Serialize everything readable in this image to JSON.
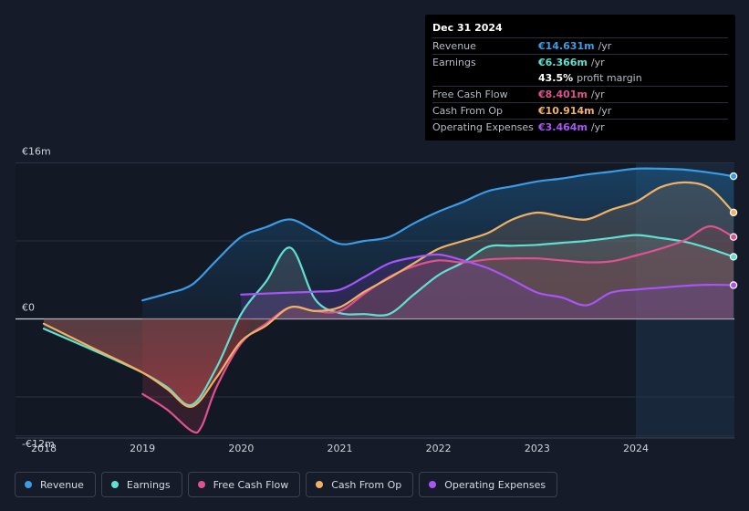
{
  "tooltip": {
    "date": "Dec 31 2024",
    "rows": [
      {
        "label": "Revenue",
        "value": "€14.631m",
        "unit": "/yr",
        "color": "#3b9ce6"
      },
      {
        "label": "Earnings",
        "value": "€6.366m",
        "unit": "/yr",
        "color": "#5fe0d0"
      },
      {
        "label": "",
        "value": "43.5%",
        "unit": "profit margin",
        "color": "#ffffff"
      },
      {
        "label": "Free Cash Flow",
        "value": "€8.401m",
        "unit": "/yr",
        "color": "#e0528f"
      },
      {
        "label": "Cash From Op",
        "value": "€10.914m",
        "unit": "/yr",
        "color": "#f1b164"
      },
      {
        "label": "Operating Expenses",
        "value": "€3.464m",
        "unit": "/yr",
        "color": "#a855f7"
      }
    ]
  },
  "legend": [
    {
      "label": "Revenue",
      "color": "#3b9ce6"
    },
    {
      "label": "Earnings",
      "color": "#5fe0d0"
    },
    {
      "label": "Free Cash Flow",
      "color": "#e0528f"
    },
    {
      "label": "Cash From Op",
      "color": "#f1b164"
    },
    {
      "label": "Operating Expenses",
      "color": "#a855f7"
    }
  ],
  "chart_data": {
    "type": "area",
    "y_unit": "€m",
    "y_axis_labels": [
      {
        "label": "€16m",
        "value": 16
      },
      {
        "label": "€0",
        "value": 0
      },
      {
        "label": "-€12m",
        "value": -12
      }
    ],
    "ylim": [
      -12,
      16
    ],
    "xlim": [
      2017.7,
      2024.99
    ],
    "x_ticks": [
      {
        "label": "2018",
        "value": 2018
      },
      {
        "label": "2019",
        "value": 2019
      },
      {
        "label": "2020",
        "value": 2020
      },
      {
        "label": "2021",
        "value": 2021
      },
      {
        "label": "2022",
        "value": 2022
      },
      {
        "label": "2023",
        "value": 2023
      },
      {
        "label": "2024",
        "value": 2024
      }
    ],
    "highlight_from": 2024.0,
    "series": [
      {
        "name": "Revenue",
        "color": "#3b9ce6",
        "x": [
          2019.0,
          2019.25,
          2019.5,
          2019.75,
          2020.0,
          2020.25,
          2020.5,
          2020.75,
          2021.0,
          2021.25,
          2021.5,
          2021.75,
          2022.0,
          2022.25,
          2022.5,
          2022.75,
          2023.0,
          2023.25,
          2023.5,
          2023.75,
          2024.0,
          2024.25,
          2024.5,
          2024.75,
          2024.99
        ],
        "y": [
          1.9,
          2.6,
          3.5,
          6.0,
          8.4,
          9.4,
          10.2,
          9.0,
          7.7,
          8.0,
          8.4,
          9.8,
          11.0,
          12.0,
          13.1,
          13.6,
          14.1,
          14.4,
          14.8,
          15.1,
          15.4,
          15.4,
          15.3,
          15.0,
          14.631
        ]
      },
      {
        "name": "Earnings",
        "color": "#5fe0d0",
        "x": [
          2018.0,
          2018.5,
          2019.0,
          2019.25,
          2019.5,
          2019.75,
          2020.0,
          2020.25,
          2020.5,
          2020.75,
          2021.0,
          2021.25,
          2021.5,
          2021.75,
          2022.0,
          2022.25,
          2022.5,
          2022.75,
          2023.0,
          2023.25,
          2023.5,
          2023.75,
          2024.0,
          2024.25,
          2024.5,
          2024.75,
          2024.99
        ],
        "y": [
          -1.0,
          -3.2,
          -5.5,
          -7.0,
          -8.8,
          -5.0,
          0.5,
          3.8,
          7.3,
          2.0,
          0.6,
          0.5,
          0.5,
          2.5,
          4.5,
          5.8,
          7.4,
          7.5,
          7.6,
          7.8,
          8.0,
          8.3,
          8.6,
          8.3,
          7.9,
          7.2,
          6.366
        ]
      },
      {
        "name": "Free Cash Flow",
        "color": "#e0528f",
        "x": [
          2019.0,
          2019.25,
          2019.5,
          2019.6,
          2019.75,
          2020.0,
          2020.25,
          2020.5,
          2020.75,
          2021.0,
          2021.25,
          2021.5,
          2021.75,
          2022.0,
          2022.25,
          2022.5,
          2022.75,
          2023.0,
          2023.25,
          2023.5,
          2023.75,
          2024.0,
          2024.25,
          2024.5,
          2024.75,
          2024.99
        ],
        "y": [
          -7.7,
          -9.3,
          -11.5,
          -11.0,
          -7.0,
          -2.5,
          -0.5,
          1.2,
          0.8,
          0.8,
          2.6,
          4.3,
          5.4,
          6.0,
          5.8,
          6.1,
          6.2,
          6.2,
          6.0,
          5.8,
          5.9,
          6.5,
          7.2,
          8.1,
          9.5,
          8.401
        ]
      },
      {
        "name": "Cash From Op",
        "color": "#f1b164",
        "x": [
          2018.0,
          2018.5,
          2019.0,
          2019.25,
          2019.5,
          2019.75,
          2020.0,
          2020.25,
          2020.5,
          2020.75,
          2021.0,
          2021.25,
          2021.5,
          2021.75,
          2022.0,
          2022.25,
          2022.5,
          2022.75,
          2023.0,
          2023.25,
          2023.5,
          2023.75,
          2024.0,
          2024.25,
          2024.5,
          2024.75,
          2024.99
        ],
        "y": [
          -0.5,
          -3.0,
          -5.5,
          -7.2,
          -9.0,
          -6.0,
          -2.3,
          -0.7,
          1.2,
          0.8,
          1.2,
          2.8,
          4.2,
          5.7,
          7.2,
          8.0,
          8.8,
          10.2,
          10.9,
          10.5,
          10.2,
          11.2,
          12.0,
          13.5,
          14.0,
          13.4,
          10.914
        ]
      },
      {
        "name": "Operating Expenses",
        "color": "#a855f7",
        "x": [
          2020.0,
          2020.25,
          2020.5,
          2020.75,
          2021.0,
          2021.25,
          2021.5,
          2021.75,
          2022.0,
          2022.25,
          2022.5,
          2022.75,
          2023.0,
          2023.25,
          2023.5,
          2023.75,
          2024.0,
          2024.25,
          2024.5,
          2024.75,
          2024.99
        ],
        "y": [
          2.5,
          2.6,
          2.7,
          2.8,
          3.0,
          4.3,
          5.7,
          6.3,
          6.6,
          6.0,
          5.2,
          4.0,
          2.7,
          2.2,
          1.4,
          2.7,
          3.0,
          3.2,
          3.4,
          3.5,
          3.464
        ]
      }
    ]
  }
}
